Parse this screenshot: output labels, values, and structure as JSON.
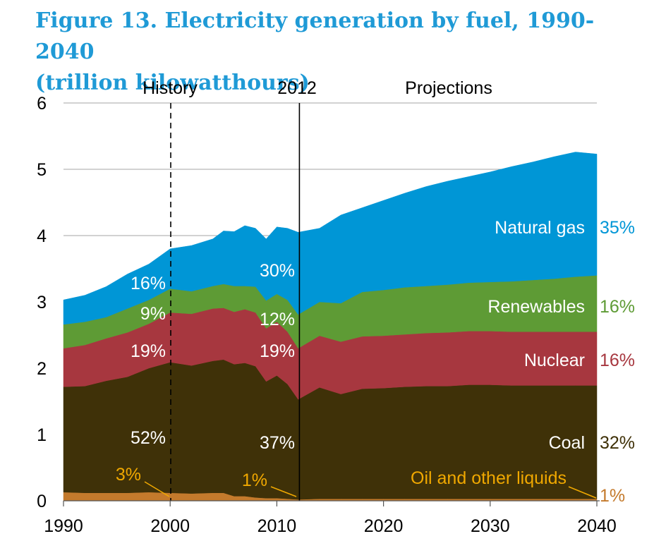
{
  "title_line1": "Figure 13. Electricity generation by fuel, 1990-2040",
  "title_line2": "(trillion kilowatthours)",
  "chart_data": {
    "type": "area",
    "stacked": true,
    "title": "Figure 13. Electricity generation by fuel, 1990-2040 (trillion kilowatthours)",
    "xlabel": "",
    "ylabel": "",
    "xlim": [
      1990,
      2040
    ],
    "ylim": [
      0,
      6
    ],
    "x_ticks": [
      "1990",
      "2000",
      "2010",
      "2020",
      "2030",
      "2040"
    ],
    "y_ticks": [
      "0",
      "1",
      "2",
      "3",
      "4",
      "5",
      "6"
    ],
    "grid": "horizontal",
    "section_labels": {
      "history": "History",
      "divider": "2012",
      "projections": "Projections"
    },
    "x": [
      1990,
      1992,
      1994,
      1996,
      1998,
      2000,
      2002,
      2004,
      2005,
      2006,
      2007,
      2008,
      2009,
      2010,
      2011,
      2012,
      2014,
      2016,
      2018,
      2020,
      2022,
      2024,
      2026,
      2028,
      2030,
      2032,
      2034,
      2036,
      2038,
      2040
    ],
    "series": [
      {
        "name": "Oil and other liquids",
        "color": "#c47a2c",
        "values": [
          0.13,
          0.12,
          0.12,
          0.12,
          0.13,
          0.12,
          0.11,
          0.12,
          0.12,
          0.07,
          0.07,
          0.05,
          0.04,
          0.04,
          0.03,
          0.02,
          0.03,
          0.03,
          0.03,
          0.03,
          0.03,
          0.03,
          0.03,
          0.03,
          0.03,
          0.03,
          0.03,
          0.03,
          0.03,
          0.03
        ]
      },
      {
        "name": "Coal",
        "color": "#3f3108",
        "values": [
          1.59,
          1.61,
          1.69,
          1.75,
          1.87,
          1.97,
          1.93,
          1.99,
          2.01,
          1.99,
          2.01,
          1.98,
          1.76,
          1.85,
          1.73,
          1.51,
          1.68,
          1.58,
          1.66,
          1.67,
          1.69,
          1.7,
          1.7,
          1.72,
          1.72,
          1.71,
          1.71,
          1.71,
          1.71,
          1.71
        ]
      },
      {
        "name": "Nuclear",
        "color": "#a7373f",
        "values": [
          0.58,
          0.62,
          0.64,
          0.67,
          0.67,
          0.75,
          0.78,
          0.79,
          0.78,
          0.79,
          0.81,
          0.81,
          0.8,
          0.81,
          0.79,
          0.77,
          0.78,
          0.79,
          0.79,
          0.79,
          0.79,
          0.8,
          0.81,
          0.81,
          0.81,
          0.81,
          0.81,
          0.81,
          0.81,
          0.81
        ]
      },
      {
        "name": "Renewables",
        "color": "#5e9b35",
        "values": [
          0.36,
          0.35,
          0.32,
          0.36,
          0.36,
          0.36,
          0.34,
          0.34,
          0.36,
          0.39,
          0.35,
          0.39,
          0.42,
          0.42,
          0.48,
          0.51,
          0.51,
          0.58,
          0.67,
          0.69,
          0.71,
          0.71,
          0.72,
          0.73,
          0.74,
          0.76,
          0.78,
          0.8,
          0.83,
          0.85
        ]
      },
      {
        "name": "Natural gas",
        "color": "#0096d6",
        "values": [
          0.37,
          0.4,
          0.46,
          0.52,
          0.54,
          0.6,
          0.69,
          0.71,
          0.8,
          0.82,
          0.91,
          0.88,
          0.93,
          1.01,
          1.08,
          1.24,
          1.11,
          1.33,
          1.27,
          1.35,
          1.42,
          1.5,
          1.56,
          1.6,
          1.66,
          1.73,
          1.78,
          1.84,
          1.88,
          1.83
        ]
      }
    ],
    "series_labels": [
      {
        "name": "Natural gas",
        "share_2040": "35%"
      },
      {
        "name": "Renewables",
        "share_2040": "16%"
      },
      {
        "name": "Nuclear",
        "share_2040": "16%"
      },
      {
        "name": "Coal",
        "share_2040": "32%"
      },
      {
        "name": "Oil and other liquids",
        "share_2040": "1%"
      }
    ],
    "annotations_2000": {
      "natural_gas": "16%",
      "renewables": "9%",
      "nuclear": "19%",
      "coal": "52%",
      "oil": "3%"
    },
    "annotations_2012": {
      "natural_gas": "30%",
      "renewables": "12%",
      "nuclear": "19%",
      "coal": "37%",
      "oil": "1%"
    }
  }
}
